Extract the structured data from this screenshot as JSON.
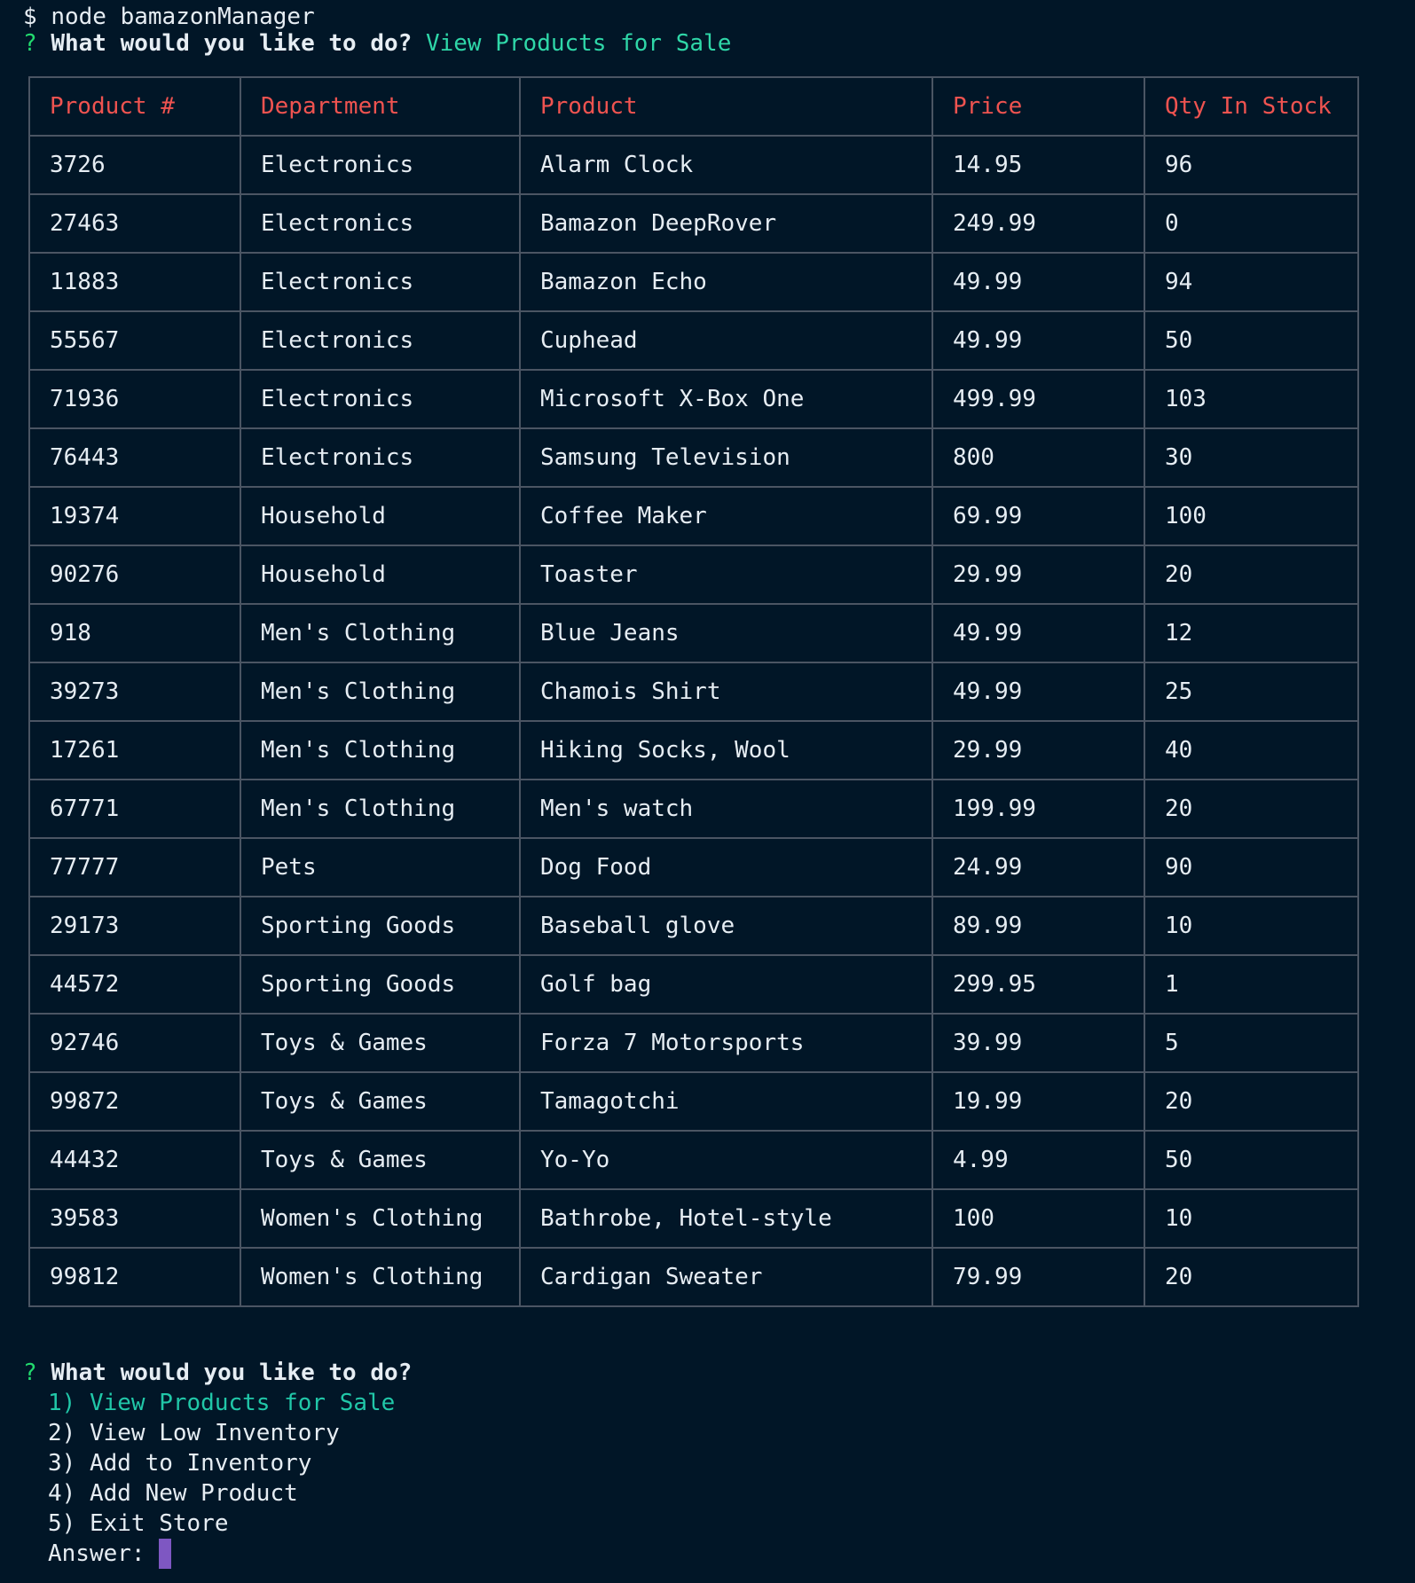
{
  "command": {
    "prompt": "$",
    "text": "node bamazonManager"
  },
  "question1": {
    "mark": "?",
    "text": "What would you like to do?",
    "answer": "View Products for Sale"
  },
  "table": {
    "headers": [
      "Product #",
      "Department",
      "Product",
      "Price",
      "Qty In Stock"
    ],
    "rows": [
      [
        "3726",
        "Electronics",
        "Alarm Clock",
        "14.95",
        "96"
      ],
      [
        "27463",
        "Electronics",
        "Bamazon DeepRover",
        "249.99",
        "0"
      ],
      [
        "11883",
        "Electronics",
        "Bamazon Echo",
        "49.99",
        "94"
      ],
      [
        "55567",
        "Electronics",
        "Cuphead",
        "49.99",
        "50"
      ],
      [
        "71936",
        "Electronics",
        "Microsoft X-Box One",
        "499.99",
        "103"
      ],
      [
        "76443",
        "Electronics",
        "Samsung Television",
        "800",
        "30"
      ],
      [
        "19374",
        "Household",
        "Coffee Maker",
        "69.99",
        "100"
      ],
      [
        "90276",
        "Household",
        "Toaster",
        "29.99",
        "20"
      ],
      [
        "918",
        "Men's Clothing",
        "Blue Jeans",
        "49.99",
        "12"
      ],
      [
        "39273",
        "Men's Clothing",
        "Chamois Shirt",
        "49.99",
        "25"
      ],
      [
        "17261",
        "Men's Clothing",
        "Hiking Socks, Wool",
        "29.99",
        "40"
      ],
      [
        "67771",
        "Men's Clothing",
        "Men's watch",
        "199.99",
        "20"
      ],
      [
        "77777",
        "Pets",
        "Dog Food",
        "24.99",
        "90"
      ],
      [
        "29173",
        "Sporting Goods",
        "Baseball glove",
        "89.99",
        "10"
      ],
      [
        "44572",
        "Sporting Goods",
        "Golf bag",
        "299.95",
        "1"
      ],
      [
        "92746",
        "Toys & Games",
        "Forza 7 Motorsports",
        "39.99",
        "5"
      ],
      [
        "99872",
        "Toys & Games",
        "Tamagotchi",
        "19.99",
        "20"
      ],
      [
        "44432",
        "Toys & Games",
        "Yo-Yo",
        "4.99",
        "50"
      ],
      [
        "39583",
        "Women's Clothing",
        "Bathrobe, Hotel-style",
        "100",
        "10"
      ],
      [
        "99812",
        "Women's Clothing",
        "Cardigan Sweater",
        "79.99",
        "20"
      ]
    ]
  },
  "question2": {
    "mark": "?",
    "text": "What would you like to do?",
    "options": [
      "1) View Products for Sale",
      "2) View Low Inventory",
      "3) Add to Inventory",
      "4) Add New Product",
      "5) Exit Store"
    ],
    "answer_label": "Answer:"
  },
  "colors": {
    "background": "#011627",
    "header": "#ef5350",
    "prompt_mark": "#22da6e",
    "answer": "#2fd7a8",
    "border": "#4b5563",
    "cursor": "#7e57c2"
  }
}
